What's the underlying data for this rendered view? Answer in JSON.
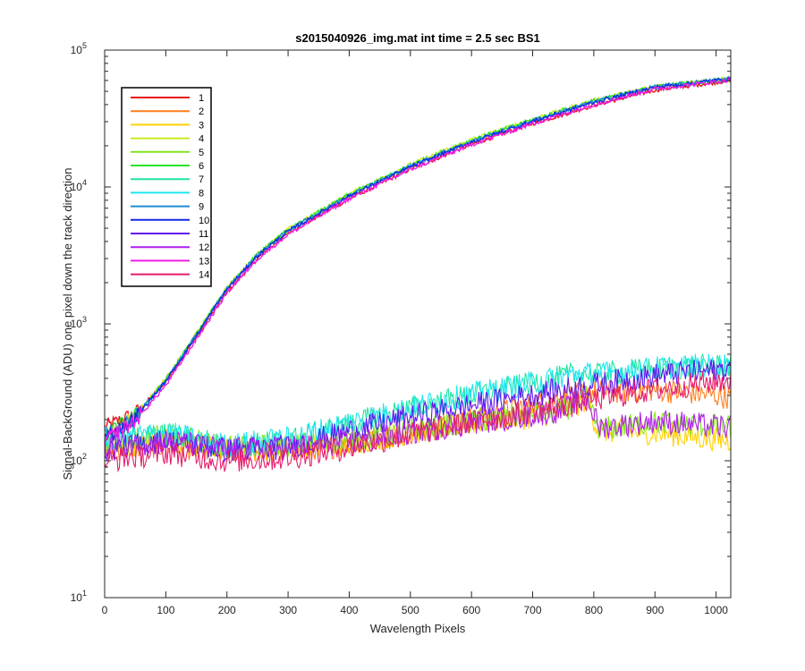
{
  "chart_data": {
    "type": "line",
    "title": "s2015040926_img.mat int time = 2.5 sec   BS1",
    "xlabel": "Wavelength Pixels",
    "ylabel": "Signal-BackGround (ADU) one pixel down the track direction",
    "xlim": [
      0,
      1024
    ],
    "ylim": [
      10,
      100000
    ],
    "yscale": "log",
    "xticks": [
      0,
      100,
      200,
      300,
      400,
      500,
      600,
      700,
      800,
      900,
      1000
    ],
    "yticks": [
      {
        "value": 10,
        "base": "10",
        "exp": "1"
      },
      {
        "value": 100,
        "base": "10",
        "exp": "2"
      },
      {
        "value": 1000,
        "base": "10",
        "exp": "3"
      },
      {
        "value": 10000,
        "base": "10",
        "exp": "4"
      },
      {
        "value": 100000,
        "base": "10",
        "exp": "5"
      }
    ],
    "grid": false,
    "legend_position": "top-left",
    "series": [
      {
        "name": "1",
        "color": "#e8141e",
        "x": [
          0,
          50,
          100,
          150,
          200,
          250,
          300,
          400,
          500,
          600,
          700,
          800,
          900,
          1024
        ],
        "y": [
          175,
          220,
          380,
          800,
          1700,
          3000,
          4600,
          8200,
          13500,
          20500,
          29000,
          39500,
          51000,
          60000
        ]
      },
      {
        "name": "2",
        "color": "#ff7f1e",
        "x": [
          0,
          100,
          200,
          300,
          400,
          500,
          600,
          700,
          750,
          800,
          850,
          900,
          1000,
          1024
        ],
        "y": [
          120,
          130,
          115,
          120,
          130,
          160,
          200,
          260,
          290,
          320,
          320,
          330,
          300,
          290
        ]
      },
      {
        "name": "3",
        "color": "#ffd200",
        "x": [
          0,
          100,
          200,
          300,
          400,
          500,
          600,
          700,
          750,
          790,
          800,
          810,
          900,
          1024
        ],
        "y": [
          125,
          140,
          120,
          125,
          135,
          160,
          190,
          210,
          230,
          280,
          200,
          165,
          160,
          140
        ]
      },
      {
        "name": "4",
        "color": "#c8eb1e",
        "x": [
          0,
          50,
          100,
          150,
          200,
          250,
          300,
          400,
          500,
          600,
          700,
          800,
          900,
          1024
        ],
        "y": [
          150,
          215,
          395,
          850,
          1850,
          3250,
          4900,
          8900,
          14600,
          22200,
          31300,
          43000,
          54500,
          62000
        ]
      },
      {
        "name": "5",
        "color": "#82e61e",
        "x": [
          0,
          100,
          200,
          300,
          400,
          500,
          600,
          700,
          750,
          790,
          800,
          810,
          900,
          1024
        ],
        "y": [
          130,
          155,
          125,
          130,
          140,
          165,
          195,
          215,
          235,
          290,
          205,
          170,
          190,
          175
        ]
      },
      {
        "name": "6",
        "color": "#28e628",
        "x": [
          0,
          50,
          100,
          150,
          200,
          250,
          300,
          400,
          500,
          600,
          700,
          800,
          900,
          1024
        ],
        "y": [
          150,
          212,
          390,
          840,
          1830,
          3220,
          4850,
          8800,
          14400,
          21900,
          31000,
          42500,
          54000,
          61500
        ]
      },
      {
        "name": "7",
        "color": "#1ee6a0",
        "x": [
          0,
          100,
          200,
          300,
          400,
          500,
          600,
          700,
          780,
          800,
          900,
          1000,
          1024
        ],
        "y": [
          140,
          155,
          125,
          140,
          185,
          240,
          300,
          365,
          440,
          420,
          470,
          490,
          500
        ]
      },
      {
        "name": "8",
        "color": "#1ee6f0",
        "x": [
          0,
          100,
          200,
          300,
          400,
          500,
          600,
          700,
          780,
          800,
          900,
          1000,
          1024
        ],
        "y": [
          145,
          160,
          130,
          145,
          190,
          245,
          305,
          370,
          440,
          425,
          475,
          500,
          510
        ]
      },
      {
        "name": "9",
        "color": "#1e8cd2",
        "x": [
          0,
          50,
          100,
          150,
          200,
          250,
          300,
          400,
          500,
          600,
          700,
          800,
          900,
          1024
        ],
        "y": [
          148,
          208,
          385,
          830,
          1810,
          3180,
          4800,
          8700,
          14200,
          21600,
          30500,
          42000,
          54000,
          62000
        ]
      },
      {
        "name": "10",
        "color": "#1428e6",
        "x": [
          0,
          50,
          100,
          150,
          200,
          250,
          300,
          400,
          500,
          600,
          700,
          800,
          900,
          1024
        ],
        "y": [
          145,
          205,
          380,
          820,
          1790,
          3150,
          4750,
          8600,
          14000,
          21300,
          30200,
          41500,
          53500,
          61500
        ]
      },
      {
        "name": "11",
        "color": "#6414f0",
        "x": [
          0,
          100,
          200,
          300,
          400,
          500,
          600,
          700,
          800,
          900,
          1000,
          1024
        ],
        "y": [
          120,
          140,
          120,
          125,
          165,
          210,
          255,
          305,
          360,
          420,
          460,
          480
        ]
      },
      {
        "name": "12",
        "color": "#b41ef0",
        "x": [
          0,
          100,
          200,
          300,
          400,
          500,
          600,
          700,
          750,
          790,
          800,
          810,
          900,
          1024
        ],
        "y": [
          125,
          140,
          120,
          125,
          135,
          160,
          190,
          215,
          235,
          290,
          215,
          175,
          195,
          175
        ]
      },
      {
        "name": "13",
        "color": "#f01ee6",
        "x": [
          0,
          50,
          100,
          150,
          200,
          250,
          300,
          400,
          500,
          600,
          700,
          800,
          900,
          1024
        ],
        "y": [
          140,
          195,
          355,
          770,
          1690,
          2980,
          4500,
          8200,
          13400,
          20400,
          29000,
          40000,
          52000,
          60500
        ]
      },
      {
        "name": "14",
        "color": "#e61e6e",
        "x": [
          0,
          100,
          200,
          300,
          400,
          500,
          600,
          700,
          800,
          900,
          1000,
          1024
        ],
        "y": [
          100,
          115,
          100,
          105,
          125,
          155,
          190,
          230,
          280,
          330,
          380,
          390
        ]
      }
    ]
  }
}
